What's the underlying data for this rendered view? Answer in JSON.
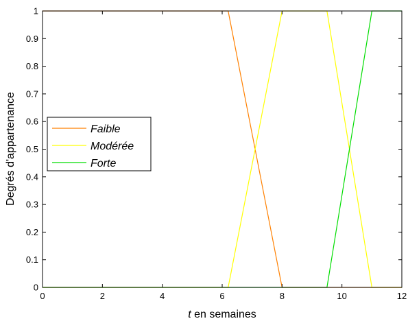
{
  "chart_data": {
    "type": "line",
    "xlabel_italic": "t",
    "xlabel_rest": " en semaines",
    "ylabel": "Degrés d'appartenance",
    "xlim": [
      0,
      12
    ],
    "ylim": [
      0,
      1
    ],
    "xticks": [
      "0",
      "2",
      "4",
      "6",
      "8",
      "10",
      "12"
    ],
    "yticks": [
      "0",
      "0.1",
      "0.2",
      "0.3",
      "0.4",
      "0.5",
      "0.6",
      "0.7",
      "0.8",
      "0.9",
      "1"
    ],
    "grid": false,
    "legend_position": "middle-left",
    "series": [
      {
        "name": "Faible",
        "color": "#ff8000",
        "x": [
          0,
          6.2,
          8,
          12
        ],
        "y": [
          1,
          1,
          0,
          0
        ]
      },
      {
        "name": "Modérée",
        "color": "#ffff00",
        "x": [
          0,
          6.2,
          8,
          9.5,
          11,
          12
        ],
        "y": [
          0,
          0,
          1,
          1,
          0,
          0
        ]
      },
      {
        "name": "Forte",
        "color": "#00dd00",
        "x": [
          0,
          9.5,
          11,
          12
        ],
        "y": [
          0,
          0,
          1,
          1
        ]
      }
    ]
  }
}
